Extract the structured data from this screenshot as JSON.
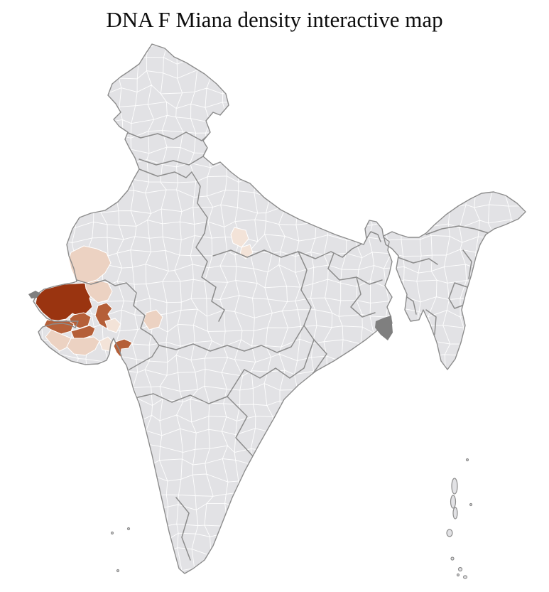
{
  "page": {
    "title": "DNA F Miana density interactive map"
  },
  "map": {
    "type": "choropleth",
    "region": "India district map",
    "legend_visible": false,
    "colors": {
      "background": "#ffffff",
      "district_base": "#e2e2e5",
      "district_border": "#ffffff",
      "state_border": "#8c8c8c",
      "country_outline": "#8c8c8c",
      "marsh": "#7f7f7f"
    },
    "density_levels": [
      {
        "id": "high",
        "color": "#9a3410"
      },
      {
        "id": "medium",
        "color": "#b55f38"
      },
      {
        "id": "low",
        "color": "#ecd2c2"
      },
      {
        "id": "very_low",
        "color": "#f3e3d8"
      }
    ],
    "highlighted_districts": [
      {
        "id": "d1",
        "area": "kutch-west-gujarat",
        "level": "high"
      },
      {
        "id": "d5",
        "area": "central-saurashtra-arm",
        "level": "medium"
      },
      {
        "id": "d6",
        "area": "north-saurashtra",
        "level": "medium"
      },
      {
        "id": "d7",
        "area": "northwest-saurashtra",
        "level": "medium"
      },
      {
        "id": "d8",
        "area": "mid-saurashtra",
        "level": "medium"
      },
      {
        "id": "d12",
        "area": "south-gujarat-coastal",
        "level": "medium"
      },
      {
        "id": "d2",
        "area": "north-gujarat-1",
        "level": "low"
      },
      {
        "id": "d3",
        "area": "north-gujarat-2",
        "level": "low"
      },
      {
        "id": "d9",
        "area": "southwest-saurashtra",
        "level": "low"
      },
      {
        "id": "d10",
        "area": "south-saurashtra",
        "level": "low"
      },
      {
        "id": "d13",
        "area": "south-rajasthan",
        "level": "low"
      },
      {
        "id": "d11",
        "area": "southeast-saurashtra",
        "level": "very_low"
      },
      {
        "id": "d14",
        "area": "north-madhya-pradesh-1",
        "level": "very_low"
      },
      {
        "id": "d15",
        "area": "ahmedabad-belt",
        "level": "very_low"
      },
      {
        "id": "d16",
        "area": "north-madhya-pradesh-2",
        "level": "very_low"
      }
    ]
  }
}
